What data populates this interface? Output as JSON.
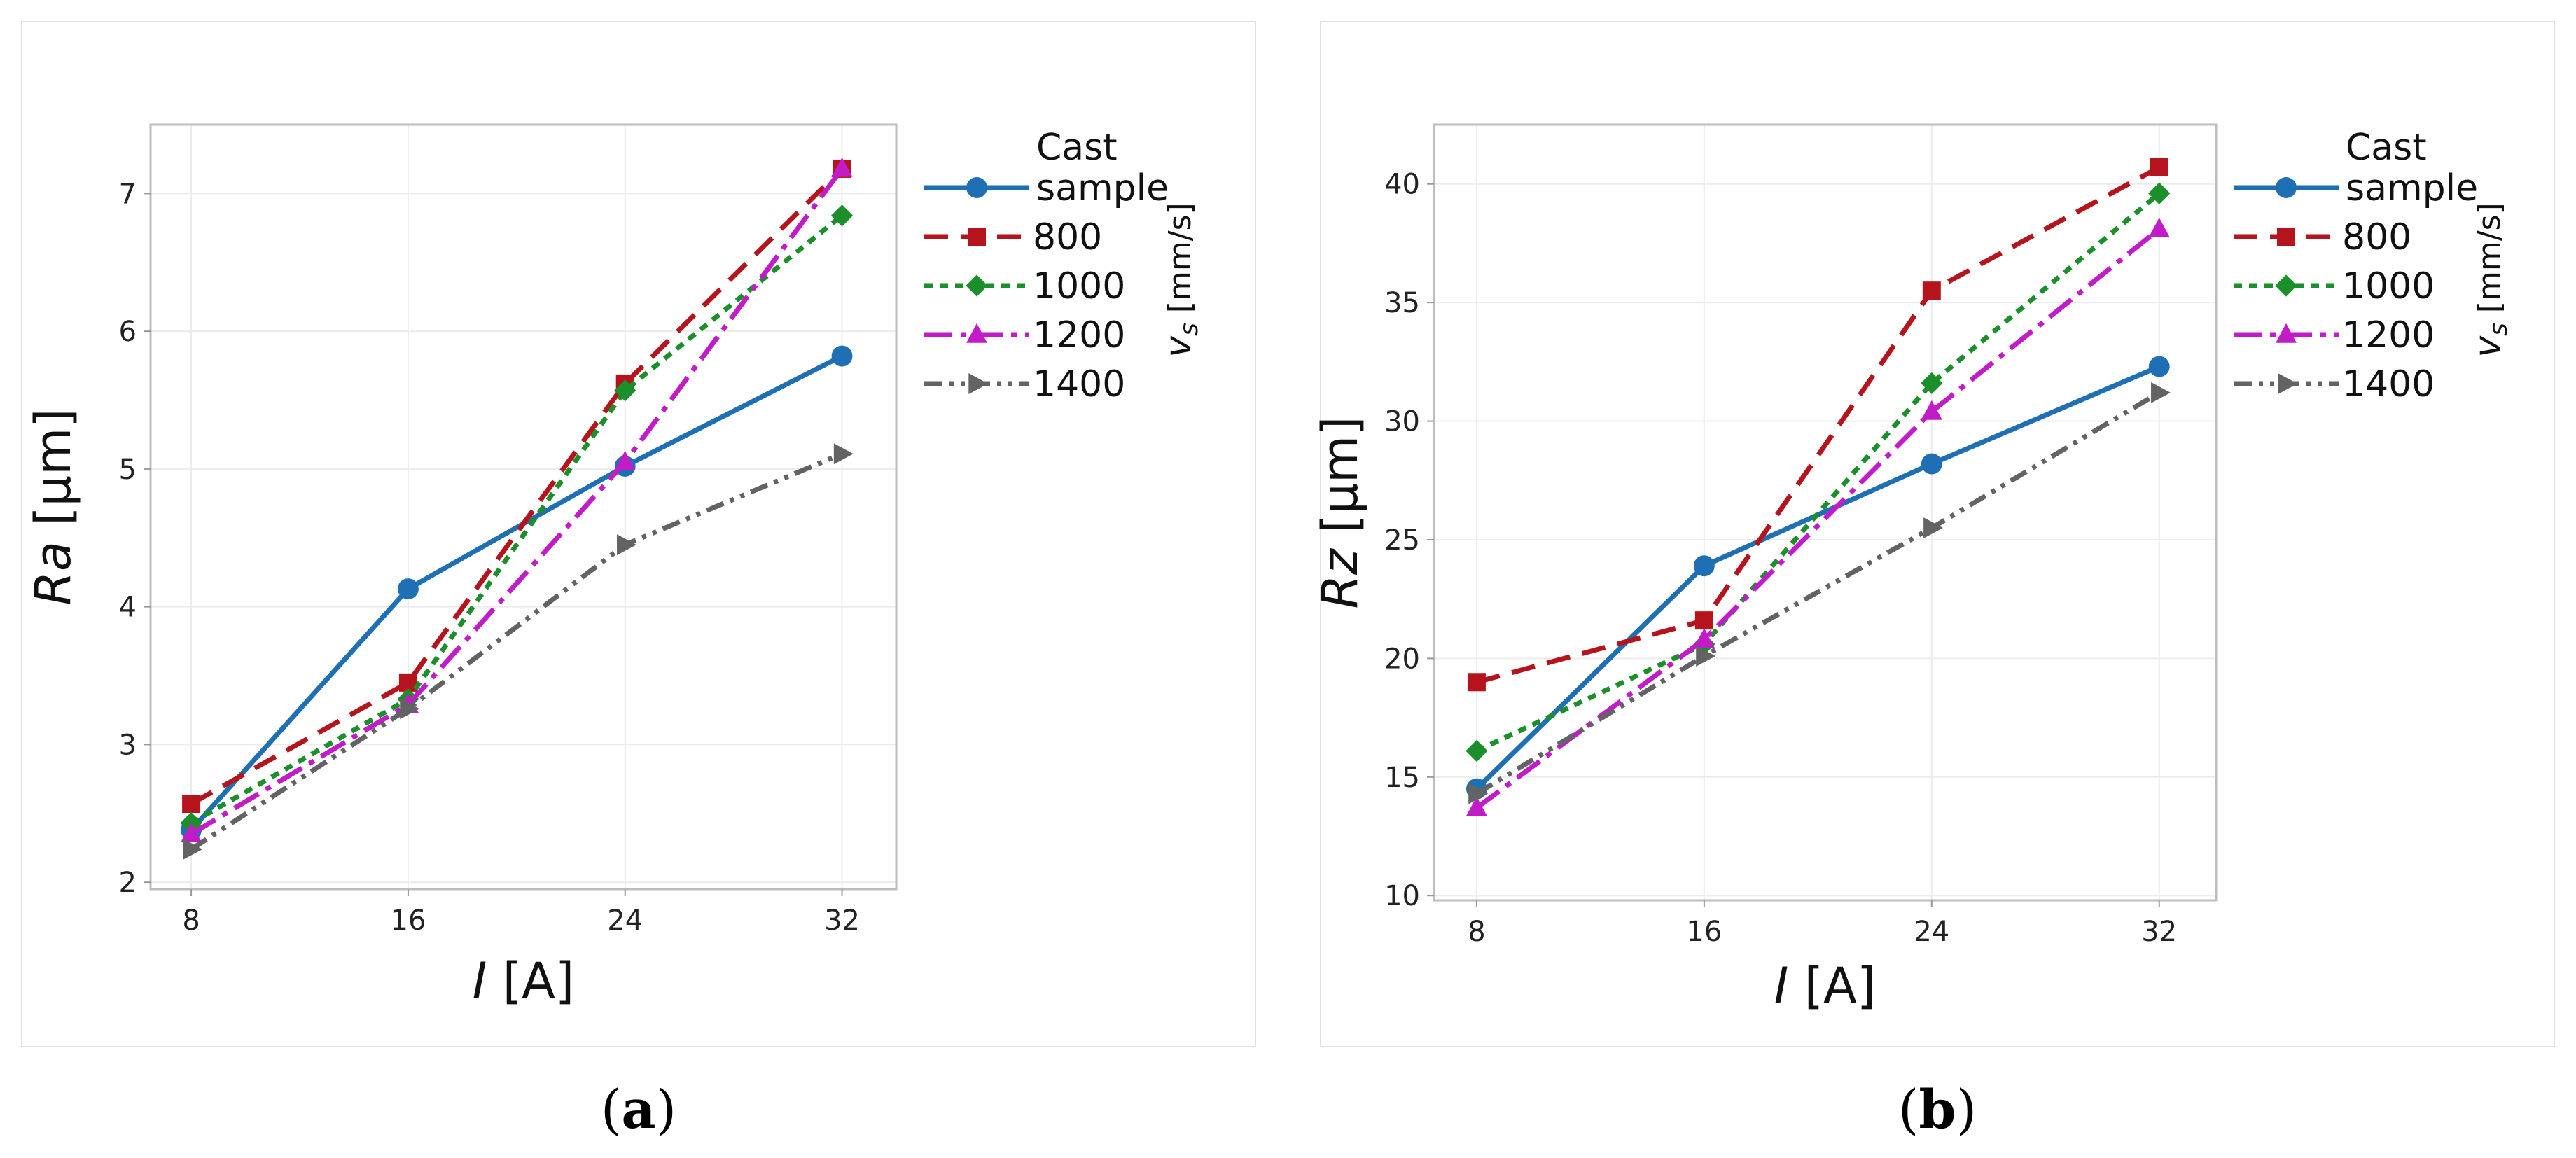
{
  "chart_data": [
    {
      "panel": "(a)",
      "type": "line",
      "xlabel_var": "I",
      "xlabel_unit": " [A]",
      "ylabel_var": "Ra",
      "ylabel_unit": " [µm]",
      "x": [
        8,
        16,
        24,
        32
      ],
      "xlim": [
        6.5,
        34
      ],
      "ylim": [
        1.95,
        7.5
      ],
      "yticks": [
        2,
        3,
        4,
        5,
        6,
        7
      ],
      "legend_title": "vs [mm/s]",
      "series": [
        {
          "name_line1": "Cast",
          "name_line2": "sample",
          "color": "#1f6fb5",
          "dash": "",
          "marker": "circle",
          "values": [
            2.38,
            4.13,
            5.02,
            5.82
          ]
        },
        {
          "name": " 800",
          "color": "#b5141c",
          "dash": "34,18",
          "marker": "square",
          "values": [
            2.57,
            3.45,
            5.62,
            7.18
          ]
        },
        {
          "name": "1000",
          "color": "#1a8f2a",
          "dash": "12,10",
          "marker": "diamond",
          "values": [
            2.43,
            3.33,
            5.57,
            6.84
          ]
        },
        {
          "name": "1200",
          "color": "#c21cc8",
          "dash": "40,12,8,12",
          "marker": "triangle",
          "values": [
            2.35,
            3.29,
            5.05,
            7.18
          ]
        },
        {
          "name": "1400",
          "color": "#636363",
          "dash": "26,10,6,10,6,10",
          "marker": "triangle-right",
          "values": [
            2.24,
            3.26,
            4.45,
            5.11
          ]
        }
      ]
    },
    {
      "panel": "(b)",
      "type": "line",
      "xlabel_var": "I",
      "xlabel_unit": " [A]",
      "ylabel_var": "Rz",
      "ylabel_unit": " [µm]",
      "x": [
        8,
        16,
        24,
        32
      ],
      "xlim": [
        6.5,
        34
      ],
      "ylim": [
        9.8,
        42.5
      ],
      "yticks": [
        10,
        15,
        20,
        25,
        30,
        35,
        40
      ],
      "legend_title": "vs [mm/s]",
      "series": [
        {
          "name_line1": "Cast",
          "name_line2": "sample",
          "color": "#1f6fb5",
          "dash": "",
          "marker": "circle",
          "values": [
            14.5,
            23.9,
            28.2,
            32.3
          ]
        },
        {
          "name": " 800",
          "color": "#b5141c",
          "dash": "34,18",
          "marker": "square",
          "values": [
            19.0,
            21.6,
            35.5,
            40.7
          ]
        },
        {
          "name": "1000",
          "color": "#1a8f2a",
          "dash": "12,10",
          "marker": "diamond",
          "values": [
            16.1,
            20.6,
            31.6,
            39.6
          ]
        },
        {
          "name": "1200",
          "color": "#c21cc8",
          "dash": "40,12,8,12",
          "marker": "triangle",
          "values": [
            13.7,
            20.8,
            30.4,
            38.1
          ]
        },
        {
          "name": "1400",
          "color": "#636363",
          "dash": "26,10,6,10,6,10",
          "marker": "triangle-right",
          "values": [
            14.3,
            20.1,
            25.5,
            31.2
          ]
        }
      ]
    }
  ],
  "panel_labels": [
    "(a)",
    "(b)"
  ]
}
